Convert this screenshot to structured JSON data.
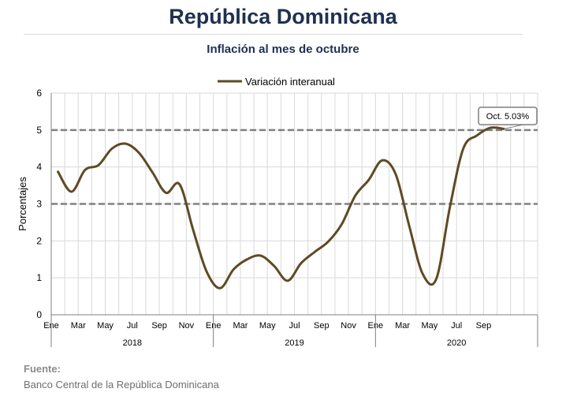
{
  "header": {
    "title": "República Dominicana",
    "subtitle": "Inflación al mes de octubre"
  },
  "source": {
    "heading": "Fuente:",
    "text": "Banco Central de la República Dominicana"
  },
  "colors": {
    "title": "#1f3050",
    "series": "#5f4a24",
    "grid": "#d9d9d9",
    "reference_line": "#808080"
  },
  "chart_data": {
    "type": "line",
    "ylabel": "Porcentajes",
    "ylim": [
      0,
      6
    ],
    "yticks": [
      0,
      1,
      2,
      3,
      4,
      5,
      6
    ],
    "grid": true,
    "legend_position": "top",
    "reference_lines": [
      3,
      5
    ],
    "month_tick_labels": [
      "Ene",
      "Mar",
      "May",
      "Jul",
      "Sep",
      "Nov",
      "Ene",
      "Mar",
      "May",
      "Jul",
      "Sep",
      "Nov",
      "Ene",
      "Mar",
      "May",
      "Jul",
      "Sep"
    ],
    "year_labels": [
      "2018",
      "2019",
      "2020"
    ],
    "x": [
      "2018-01",
      "2018-02",
      "2018-03",
      "2018-04",
      "2018-05",
      "2018-06",
      "2018-07",
      "2018-08",
      "2018-09",
      "2018-10",
      "2018-11",
      "2018-12",
      "2019-01",
      "2019-02",
      "2019-03",
      "2019-04",
      "2019-05",
      "2019-06",
      "2019-07",
      "2019-08",
      "2019-09",
      "2019-10",
      "2019-11",
      "2019-12",
      "2020-01",
      "2020-02",
      "2020-03",
      "2020-04",
      "2020-05",
      "2020-06",
      "2020-07",
      "2020-08",
      "2020-09",
      "2020-10"
    ],
    "series": [
      {
        "name": "Variación interanual",
        "values": [
          3.87,
          3.33,
          3.92,
          4.05,
          4.5,
          4.63,
          4.38,
          3.85,
          3.3,
          3.53,
          2.3,
          1.17,
          0.72,
          1.23,
          1.5,
          1.6,
          1.32,
          0.92,
          1.4,
          1.7,
          1.98,
          2.45,
          3.22,
          3.65,
          4.18,
          3.8,
          2.4,
          1.1,
          0.97,
          2.9,
          4.5,
          4.85,
          5.06,
          5.03
        ]
      }
    ],
    "annotation": "Oct. 5.03%"
  }
}
